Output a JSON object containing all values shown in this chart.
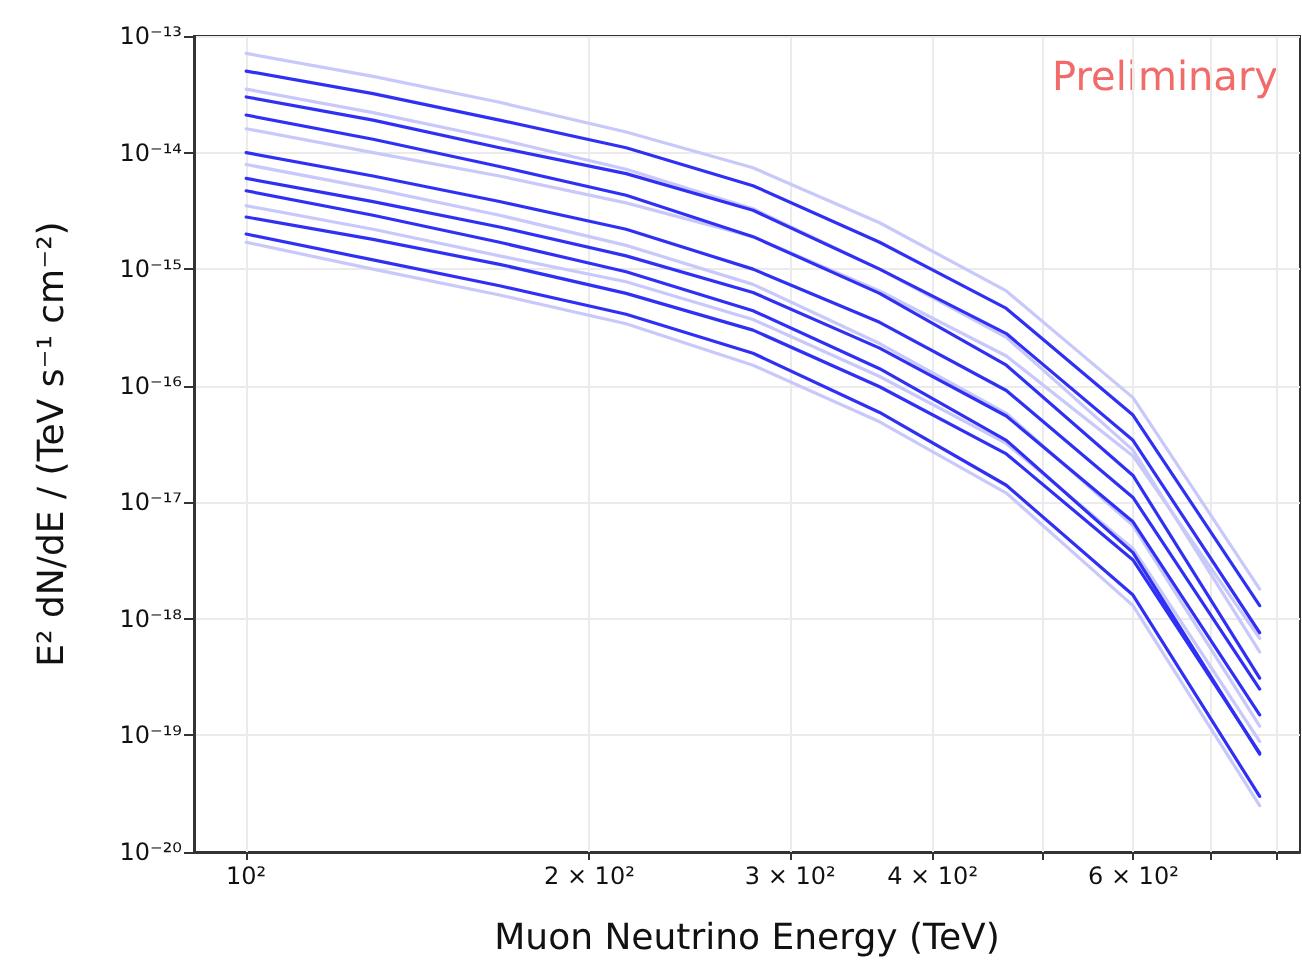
{
  "chart_data": {
    "type": "line",
    "xlabel": "Muon Neutrino Energy (TeV)",
    "ylabel": "E² dN/dE / (TeV s⁻¹ cm⁻²)",
    "annotations": [
      "Preliminary"
    ],
    "log": "xy",
    "grid": true,
    "marker": "none",
    "line_style": "solid",
    "xlim": [
      90,
      840
    ],
    "ylim": [
      1e-20,
      1e-13
    ],
    "xticks": [
      {
        "value": 100,
        "label": "10²"
      },
      {
        "value": 200,
        "label": "2 × 10²"
      },
      {
        "value": 300,
        "label": "3 × 10²"
      },
      {
        "value": 400,
        "label": "4 × 10²"
      },
      {
        "value": 500,
        "label": null
      },
      {
        "value": 600,
        "label": "6 × 10²"
      },
      {
        "value": 700,
        "label": null
      },
      {
        "value": 800,
        "label": null
      }
    ],
    "yticks": [
      {
        "value": 1e-20,
        "label": "10⁻²⁰"
      },
      {
        "value": 1e-19,
        "label": "10⁻¹⁹"
      },
      {
        "value": 1e-18,
        "label": "10⁻¹⁸"
      },
      {
        "value": 1e-17,
        "label": "10⁻¹⁷"
      },
      {
        "value": 1e-16,
        "label": "10⁻¹⁶"
      },
      {
        "value": 1e-15,
        "label": "10⁻¹⁵"
      },
      {
        "value": 1e-14,
        "label": "10⁻¹⁴"
      },
      {
        "value": 1e-13,
        "label": "10⁻¹³"
      }
    ],
    "x": [
      100,
      129.2,
      166.8,
      215.4,
      278.3,
      359.4,
      464.2,
      599.5,
      774.3
    ],
    "series": [
      {
        "color": "#c8c8fa",
        "values": [
          7.1e-14,
          4.5e-14,
          2.7e-14,
          1.5e-14,
          7.4e-15,
          2.5e-15,
          6.5e-16,
          7.9e-17,
          1.8e-18
        ]
      },
      {
        "color": "#c8c8fa",
        "values": [
          3.5e-14,
          2.2e-14,
          1.3e-14,
          7.2e-15,
          3.3e-15,
          1e-15,
          2.6e-16,
          2.8e-17,
          5.2e-19
        ]
      },
      {
        "color": "#c8c8fa",
        "values": [
          1.6e-14,
          1e-14,
          6.3e-15,
          3.7e-15,
          1.9e-15,
          6.5e-16,
          1.8e-16,
          2.5e-17,
          6.8e-19
        ]
      },
      {
        "color": "#c8c8fa",
        "values": [
          7.9e-15,
          4.9e-15,
          2.9e-15,
          1.6e-15,
          7.4e-16,
          2.3e-16,
          5.8e-17,
          6.3e-18,
          1.2e-19
        ]
      },
      {
        "color": "#c8c8fa",
        "values": [
          3.5e-15,
          2.2e-15,
          1.3e-15,
          7.8e-16,
          3.7e-16,
          1.2e-16,
          3.2e-17,
          4e-18,
          8.9e-20
        ]
      },
      {
        "color": "#c8c8fa",
        "values": [
          1.7e-15,
          1e-15,
          6e-16,
          3.4e-16,
          1.5e-16,
          4.9e-17,
          1.2e-17,
          1.3e-18,
          2.5e-20
        ]
      },
      {
        "color": "#3030f5",
        "values": [
          5e-14,
          3.2e-14,
          1.9e-14,
          1.1e-14,
          5.2e-15,
          1.7e-15,
          4.6e-16,
          5.6e-17,
          1.3e-18
        ]
      },
      {
        "color": "#3030f5",
        "values": [
          3e-14,
          1.9e-14,
          1.1e-14,
          6.6e-15,
          3.2e-15,
          1e-15,
          2.8e-16,
          3.4e-17,
          7.6e-19
        ]
      },
      {
        "color": "#3030f5",
        "values": [
          2.1e-14,
          1.3e-14,
          7.6e-15,
          4.3e-15,
          1.9e-15,
          6.2e-16,
          1.5e-16,
          1.7e-17,
          3.1e-19
        ]
      },
      {
        "color": "#3030f5",
        "values": [
          1e-14,
          6.3e-15,
          3.8e-15,
          2.2e-15,
          1e-15,
          3.5e-16,
          9.1e-17,
          1.1e-17,
          2.5e-19
        ]
      },
      {
        "color": "#3030f5",
        "values": [
          6e-15,
          3.8e-15,
          2.3e-15,
          1.3e-15,
          6.3e-16,
          2.1e-16,
          5.5e-17,
          6.8e-18,
          1.5e-19
        ]
      },
      {
        "color": "#3030f5",
        "values": [
          4.7e-15,
          2.9e-15,
          1.7e-15,
          9.5e-16,
          4.4e-16,
          1.4e-16,
          3.4e-17,
          3.7e-18,
          6.9e-20
        ]
      },
      {
        "color": "#3030f5",
        "values": [
          2.8e-15,
          1.8e-15,
          1.1e-15,
          6.2e-16,
          3e-16,
          9.8e-17,
          2.6e-17,
          3.2e-18,
          7.1e-20
        ]
      },
      {
        "color": "#3030f5",
        "values": [
          2e-15,
          1.2e-15,
          7.2e-16,
          4.1e-16,
          1.9e-16,
          5.9e-17,
          1.4e-17,
          1.6e-18,
          3e-20
        ]
      }
    ]
  }
}
